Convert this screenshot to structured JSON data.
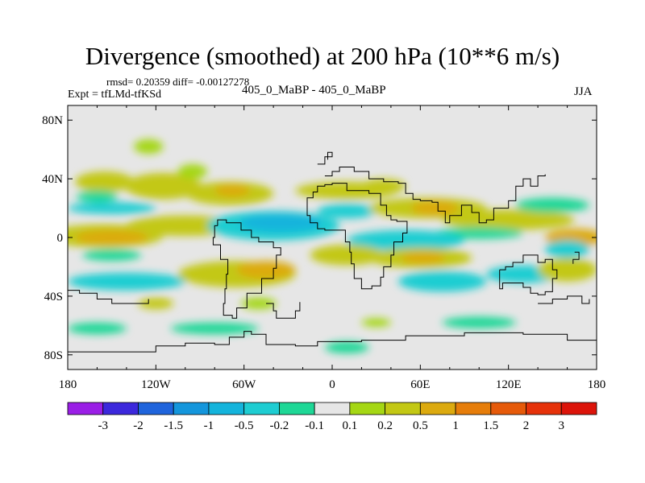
{
  "header": {
    "title": "Divergence (smoothed) at 200 hPa (10**6 m/s)",
    "stats": "rmsd= 0.20359 diff= -0.00127278",
    "expt": "Expt = tfLMd-tfKSd",
    "cases": "405_0_MaBP - 405_0_MaBP",
    "season": "JJA"
  },
  "chart_data": {
    "type": "heatmap",
    "title": "Divergence (smoothed) at 200 hPa (10**6 m/s)",
    "units": "10**6 m/s",
    "xlabel": "",
    "ylabel": "",
    "xlim": [
      -180,
      180
    ],
    "ylim": [
      -90,
      90
    ],
    "x_ticks": [
      {
        "value": -180,
        "label": "180"
      },
      {
        "value": -120,
        "label": "120W"
      },
      {
        "value": -60,
        "label": "60W"
      },
      {
        "value": 0,
        "label": "0"
      },
      {
        "value": 60,
        "label": "60E"
      },
      {
        "value": 120,
        "label": "120E"
      },
      {
        "value": 180,
        "label": "180"
      }
    ],
    "y_ticks": [
      {
        "value": 80,
        "label": "80N"
      },
      {
        "value": 40,
        "label": "40N"
      },
      {
        "value": 0,
        "label": "0"
      },
      {
        "value": -40,
        "label": "40S"
      },
      {
        "value": -80,
        "label": "80S"
      }
    ],
    "colorbar": {
      "levels": [
        "-3",
        "-2",
        "-1.5",
        "-1",
        "-0.5",
        "-0.2",
        "-0.1",
        "0.1",
        "0.2",
        "0.5",
        "1",
        "1.5",
        "2",
        "3"
      ],
      "colors": [
        "#9a1ee6",
        "#3c28dc",
        "#1f64dc",
        "#1496dc",
        "#14b4dc",
        "#1ecdd2",
        "#1ed796",
        "#e6e6e6",
        "#a5d714",
        "#c3c814",
        "#dcaa0f",
        "#e67d0a",
        "#e65a0a",
        "#e6320a",
        "#dc140a"
      ]
    },
    "fields": [
      {
        "lon": -155,
        "lat": 38,
        "rx": 20,
        "ry": 7,
        "value": 0.25
      },
      {
        "lon": -160,
        "lat": 28,
        "rx": 14,
        "ry": 4,
        "value": -0.15
      },
      {
        "lon": -115,
        "lat": 35,
        "rx": 26,
        "ry": 9,
        "value": 0.3
      },
      {
        "lon": -95,
        "lat": 45,
        "rx": 10,
        "ry": 5,
        "value": 0.15
      },
      {
        "lon": -70,
        "lat": 30,
        "rx": 30,
        "ry": 8,
        "value": 0.25
      },
      {
        "lon": -68,
        "lat": 32,
        "rx": 12,
        "ry": 4,
        "value": 0.6
      },
      {
        "lon": -125,
        "lat": 62,
        "rx": 10,
        "ry": 5,
        "value": 0.15
      },
      {
        "lon": -150,
        "lat": 20,
        "rx": 30,
        "ry": 4,
        "value": -0.3
      },
      {
        "lon": -155,
        "lat": 1,
        "rx": 40,
        "ry": 8,
        "value": 0.3
      },
      {
        "lon": -150,
        "lat": 0,
        "rx": 25,
        "ry": 5,
        "value": 0.6
      },
      {
        "lon": -100,
        "lat": 8,
        "rx": 40,
        "ry": 7,
        "value": 0.2
      },
      {
        "lon": -40,
        "lat": 8,
        "rx": 45,
        "ry": 10,
        "value": -0.35
      },
      {
        "lon": -35,
        "lat": 10,
        "rx": 28,
        "ry": 6,
        "value": -0.6
      },
      {
        "lon": 10,
        "lat": 18,
        "rx": 20,
        "ry": 5,
        "value": -0.3
      },
      {
        "lon": 10,
        "lat": 32,
        "rx": 35,
        "ry": 6,
        "value": 0.25
      },
      {
        "lon": 35,
        "lat": 35,
        "rx": 15,
        "ry": 5,
        "value": 0.2
      },
      {
        "lon": 65,
        "lat": 20,
        "rx": 40,
        "ry": 7,
        "value": 0.25
      },
      {
        "lon": 70,
        "lat": 20,
        "rx": 16,
        "ry": 5,
        "value": 0.6
      },
      {
        "lon": 120,
        "lat": 12,
        "rx": 45,
        "ry": 7,
        "value": 0.2
      },
      {
        "lon": 150,
        "lat": 22,
        "rx": 25,
        "ry": 5,
        "value": -0.2
      },
      {
        "lon": 100,
        "lat": 3,
        "rx": 30,
        "ry": 4,
        "value": -0.2
      },
      {
        "lon": 50,
        "lat": -2,
        "rx": 40,
        "ry": 7,
        "value": -0.25
      },
      {
        "lon": 165,
        "lat": 0,
        "rx": 20,
        "ry": 6,
        "value": 0.6
      },
      {
        "lon": 160,
        "lat": -8,
        "rx": 15,
        "ry": 6,
        "value": -0.3
      },
      {
        "lon": -150,
        "lat": -12,
        "rx": 20,
        "ry": 4,
        "value": -0.2
      },
      {
        "lon": -140,
        "lat": -30,
        "rx": 40,
        "ry": 6,
        "value": -0.3
      },
      {
        "lon": -65,
        "lat": -25,
        "rx": 40,
        "ry": 9,
        "value": 0.3
      },
      {
        "lon": -45,
        "lat": -22,
        "rx": 20,
        "ry": 6,
        "value": 0.7
      },
      {
        "lon": 10,
        "lat": -12,
        "rx": 25,
        "ry": 7,
        "value": 0.3
      },
      {
        "lon": 60,
        "lat": -14,
        "rx": 35,
        "ry": 7,
        "value": 0.3
      },
      {
        "lon": 62,
        "lat": -14,
        "rx": 15,
        "ry": 4,
        "value": 0.6
      },
      {
        "lon": 75,
        "lat": -30,
        "rx": 30,
        "ry": 7,
        "value": -0.25
      },
      {
        "lon": 130,
        "lat": -25,
        "rx": 25,
        "ry": 6,
        "value": -0.3
      },
      {
        "lon": 160,
        "lat": -22,
        "rx": 20,
        "ry": 8,
        "value": 0.3
      },
      {
        "lon": -120,
        "lat": -45,
        "rx": 12,
        "ry": 4,
        "value": 0.2
      },
      {
        "lon": -50,
        "lat": -45,
        "rx": 12,
        "ry": 4,
        "value": 0.15
      },
      {
        "lon": -160,
        "lat": -62,
        "rx": 20,
        "ry": 4,
        "value": -0.2
      },
      {
        "lon": -80,
        "lat": -62,
        "rx": 30,
        "ry": 4,
        "value": -0.2
      },
      {
        "lon": 10,
        "lat": -75,
        "rx": 15,
        "ry": 4,
        "value": -0.15
      },
      {
        "lon": 100,
        "lat": -58,
        "rx": 25,
        "ry": 4,
        "value": -0.2
      },
      {
        "lon": 30,
        "lat": -58,
        "rx": 10,
        "ry": 3,
        "value": 0.15
      }
    ],
    "coastlines": [
      [
        [
          -5,
          42
        ],
        [
          0,
          45
        ],
        [
          5,
          48
        ],
        [
          15,
          45
        ],
        [
          25,
          40
        ],
        [
          35,
          38
        ],
        [
          45,
          37
        ],
        [
          50,
          30
        ],
        [
          55,
          26
        ],
        [
          60,
          25
        ],
        [
          68,
          24
        ],
        [
          72,
          18
        ],
        [
          77,
          10
        ],
        [
          80,
          15
        ],
        [
          88,
          22
        ],
        [
          95,
          17
        ],
        [
          100,
          10
        ],
        [
          105,
          12
        ],
        [
          110,
          20
        ],
        [
          120,
          25
        ],
        [
          125,
          35
        ],
        [
          130,
          40
        ],
        [
          135,
          35
        ],
        [
          140,
          42
        ],
        [
          145,
          43
        ]
      ],
      [
        [
          -17,
          21
        ],
        [
          -17,
          15
        ],
        [
          -15,
          10
        ],
        [
          -10,
          6
        ],
        [
          -5,
          5
        ],
        [
          5,
          5
        ],
        [
          9,
          3
        ],
        [
          9,
          -3
        ],
        [
          12,
          -10
        ],
        [
          13,
          -18
        ],
        [
          15,
          -28
        ],
        [
          20,
          -35
        ],
        [
          27,
          -33
        ],
        [
          33,
          -27
        ],
        [
          35,
          -20
        ],
        [
          40,
          -12
        ],
        [
          42,
          -3
        ],
        [
          48,
          3
        ],
        [
          51,
          11
        ],
        [
          44,
          12
        ],
        [
          40,
          15
        ],
        [
          37,
          22
        ],
        [
          33,
          30
        ],
        [
          25,
          32
        ],
        [
          15,
          32
        ],
        [
          10,
          37
        ],
        [
          0,
          36
        ],
        [
          -5,
          35
        ],
        [
          -10,
          31
        ],
        [
          -13,
          27
        ],
        [
          -17,
          21
        ]
      ],
      [
        [
          -78,
          8
        ],
        [
          -80,
          0
        ],
        [
          -81,
          -5
        ],
        [
          -76,
          -15
        ],
        [
          -71,
          -25
        ],
        [
          -72,
          -35
        ],
        [
          -73,
          -45
        ],
        [
          -74,
          -53
        ],
        [
          -68,
          -55
        ],
        [
          -65,
          -48
        ],
        [
          -58,
          -38
        ],
        [
          -48,
          -28
        ],
        [
          -40,
          -21
        ],
        [
          -38,
          -12
        ],
        [
          -35,
          -7
        ],
        [
          -40,
          -3
        ],
        [
          -50,
          0
        ],
        [
          -55,
          5
        ],
        [
          -62,
          10
        ],
        [
          -72,
          12
        ],
        [
          -78,
          8
        ]
      ],
      [
        [
          114,
          -22
        ],
        [
          118,
          -20
        ],
        [
          123,
          -17
        ],
        [
          130,
          -12
        ],
        [
          137,
          -12
        ],
        [
          140,
          -17
        ],
        [
          145,
          -15
        ],
        [
          150,
          -22
        ],
        [
          153,
          -28
        ],
        [
          150,
          -37
        ],
        [
          145,
          -39
        ],
        [
          140,
          -38
        ],
        [
          135,
          -34
        ],
        [
          130,
          -31
        ],
        [
          116,
          -35
        ],
        [
          114,
          -28
        ],
        [
          114,
          -22
        ]
      ],
      [
        [
          -180,
          -78
        ],
        [
          -150,
          -78
        ],
        [
          -120,
          -74
        ],
        [
          -100,
          -72
        ],
        [
          -80,
          -73
        ],
        [
          -70,
          -68
        ],
        [
          -60,
          -64
        ],
        [
          -55,
          -66
        ],
        [
          -45,
          -73
        ],
        [
          -25,
          -74
        ],
        [
          -10,
          -71
        ],
        [
          20,
          -70
        ],
        [
          50,
          -67
        ],
        [
          90,
          -65
        ],
        [
          130,
          -66
        ],
        [
          160,
          -70
        ],
        [
          180,
          -76
        ]
      ],
      [
        [
          -180,
          -36
        ],
        [
          -172,
          -38
        ],
        [
          -165,
          -38
        ],
        [
          -160,
          -42
        ],
        [
          -150,
          -45
        ],
        [
          -130,
          -45
        ],
        [
          -125,
          -42
        ]
      ],
      [
        [
          -45,
          -45
        ],
        [
          -40,
          -50
        ],
        [
          -38,
          -55
        ],
        [
          -30,
          -55
        ],
        [
          -25,
          -50
        ],
        [
          -22,
          -44
        ]
      ],
      [
        [
          140,
          -45
        ],
        [
          150,
          -42
        ],
        [
          160,
          -40
        ],
        [
          170,
          -45
        ],
        [
          175,
          -42
        ]
      ],
      [
        [
          -10,
          50
        ],
        [
          -5,
          55
        ],
        [
          0,
          58
        ],
        [
          -3,
          53
        ]
      ],
      [
        [
          165,
          -10
        ],
        [
          168,
          -15
        ],
        [
          164,
          -18
        ]
      ]
    ]
  }
}
